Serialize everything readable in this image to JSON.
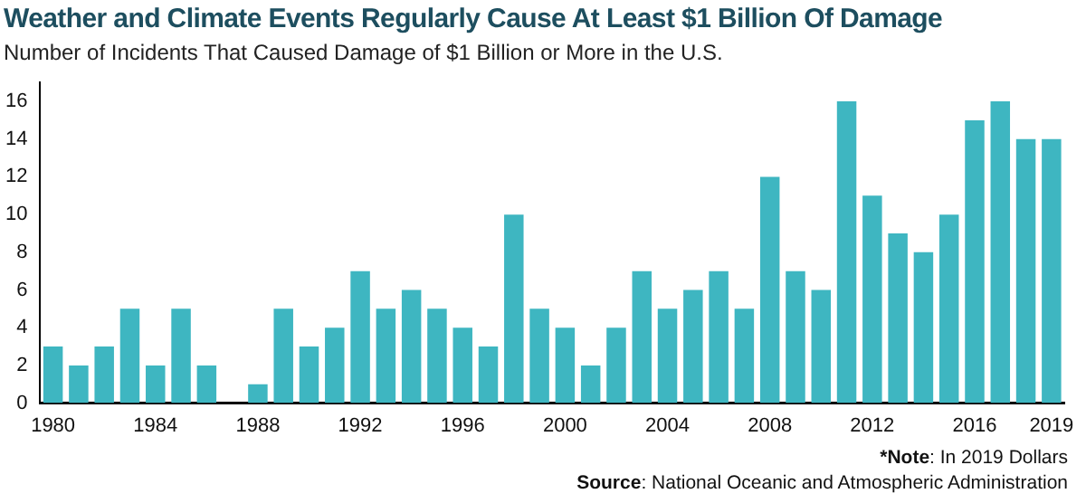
{
  "chart_data": {
    "type": "bar",
    "title": "Weather and Climate Events Regularly Cause At Least $1 Billion Of Damage",
    "subtitle": "Number of Incidents That Caused Damage of $1 Billion or More in the U.S.",
    "categories": [
      "1980",
      null,
      null,
      null,
      "1984",
      null,
      null,
      null,
      "1988",
      null,
      null,
      null,
      "1992",
      null,
      null,
      null,
      "1996",
      null,
      null,
      null,
      "2000",
      null,
      null,
      null,
      "2004",
      null,
      null,
      null,
      "2008",
      null,
      null,
      null,
      "2012",
      null,
      null,
      null,
      "2016",
      null,
      null,
      "2019"
    ],
    "values": [
      3,
      2,
      3,
      5,
      2,
      5,
      2,
      0,
      1,
      5,
      3,
      4,
      7,
      5,
      6,
      5,
      4,
      3,
      10,
      5,
      4,
      2,
      4,
      7,
      5,
      6,
      7,
      5,
      12,
      7,
      6,
      16,
      11,
      9,
      8,
      10,
      15,
      16,
      14,
      14
    ],
    "color": "#3eb6c1",
    "ylim": [
      0,
      17
    ],
    "yticks": [
      0,
      2,
      4,
      6,
      8,
      10,
      12,
      14,
      16
    ],
    "grid": false,
    "legend": false,
    "annotations": [
      "*Note: In 2019 Dollars",
      "Source: National Oceanic and Atmospheric Administration"
    ]
  }
}
